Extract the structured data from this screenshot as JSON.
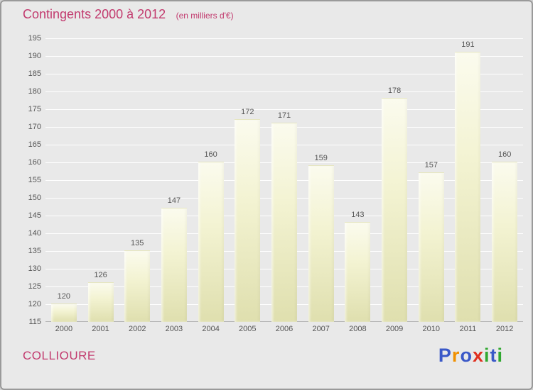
{
  "title": "Contingents 2000 à 2012",
  "subtitle": "(en milliers d'€)",
  "footer": {
    "location": "COLLIOURE",
    "logo_name": "Proxiti",
    "logo_letters": [
      {
        "ch": "P",
        "color": "#3a58c8"
      },
      {
        "ch": "r",
        "color": "#f09000"
      },
      {
        "ch": "o",
        "color": "#3a58c8"
      },
      {
        "ch": "x",
        "color": "#e03020"
      },
      {
        "ch": "i",
        "color": "#30a830"
      },
      {
        "ch": "t",
        "color": "#3a58c8"
      },
      {
        "ch": "i",
        "color": "#30a830"
      }
    ]
  },
  "colors": {
    "accent": "#c23a6e",
    "background": "#e9e9e9",
    "gridline": "#ffffff",
    "bar_top": "#fbfbee",
    "bar_bottom": "#dfdfae",
    "label_text": "#555555"
  },
  "chart_data": {
    "type": "bar",
    "title": "Contingents 2000 à 2012",
    "subtitle": "(en milliers d'€)",
    "categories": [
      "2000",
      "2001",
      "2002",
      "2003",
      "2004",
      "2005",
      "2006",
      "2007",
      "2008",
      "2009",
      "2010",
      "2011",
      "2012"
    ],
    "values": [
      120,
      126,
      135,
      147,
      160,
      172,
      171,
      159,
      143,
      178,
      157,
      191,
      160
    ],
    "xlabel": "",
    "ylabel": "",
    "ylim": [
      115,
      195
    ],
    "ytick_step": 5,
    "grid": true,
    "legend": false
  }
}
